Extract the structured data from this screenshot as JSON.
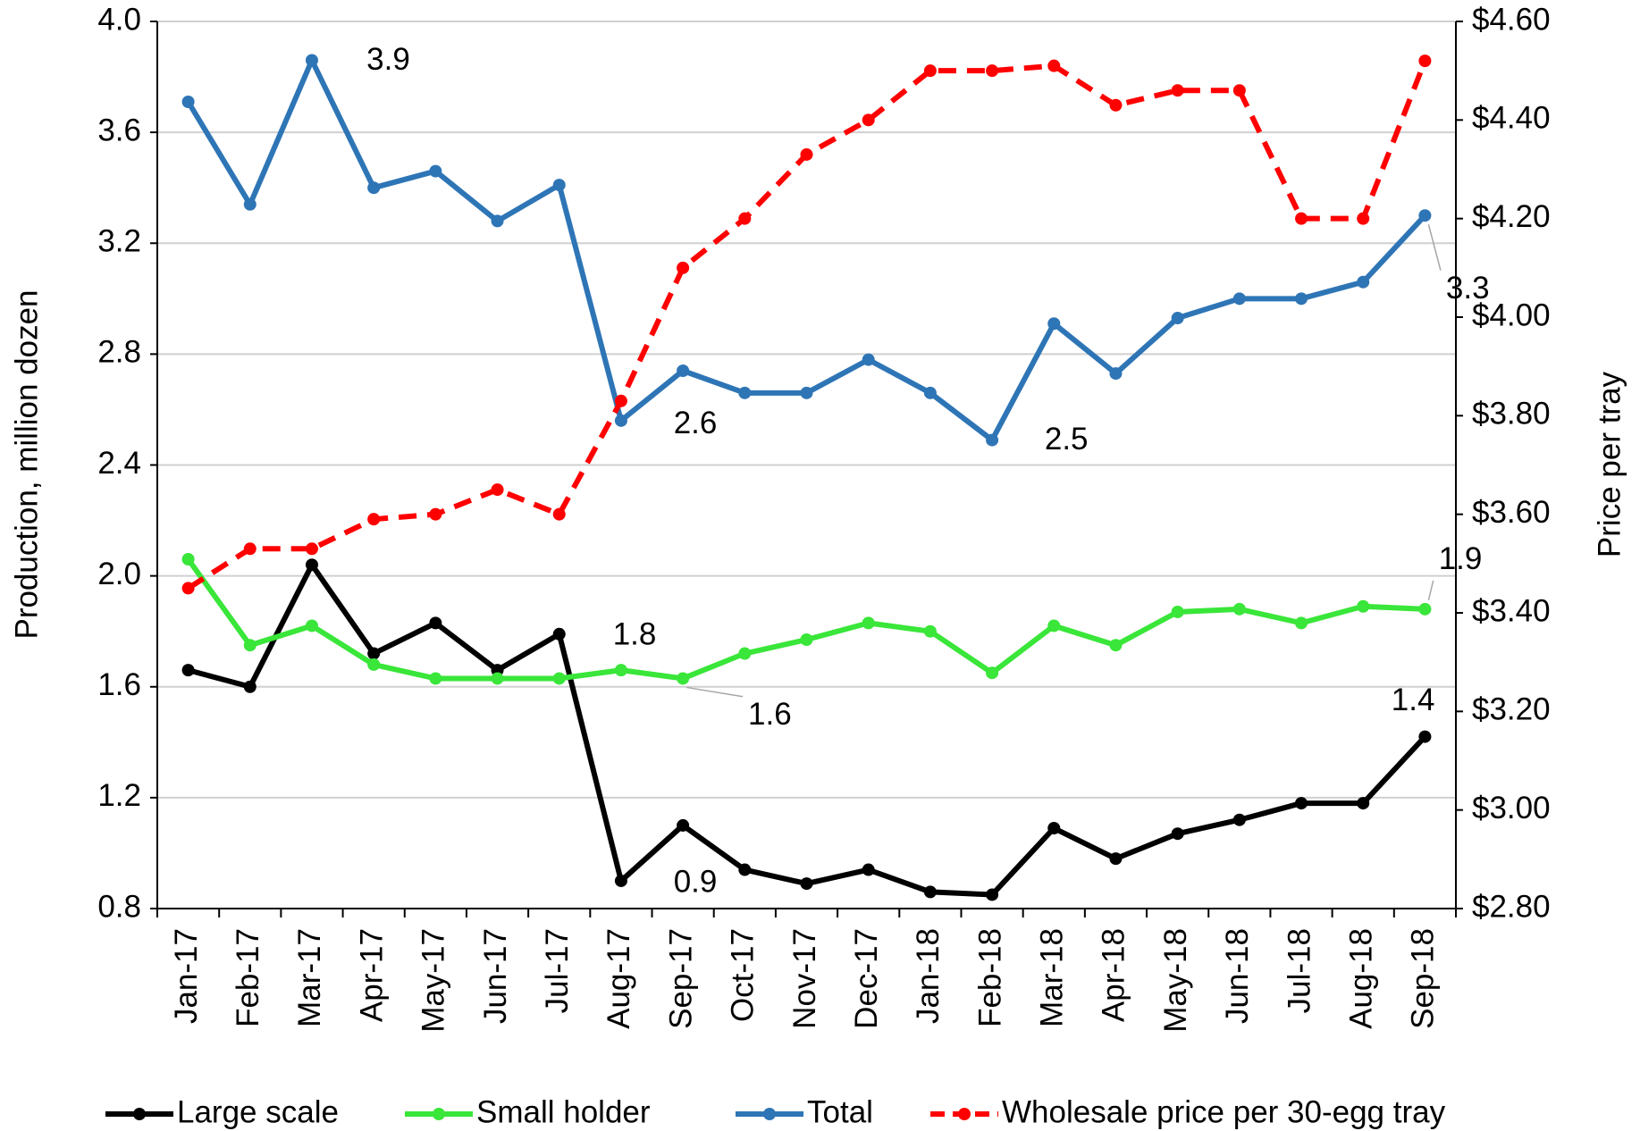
{
  "chart_data": {
    "type": "line",
    "categories": [
      "Jan-17",
      "Feb-17",
      "Mar-17",
      "Apr-17",
      "May-17",
      "Jun-17",
      "Jul-17",
      "Aug-17",
      "Sep-17",
      "Oct-17",
      "Nov-17",
      "Dec-17",
      "Jan-18",
      "Feb-18",
      "Mar-18",
      "Apr-18",
      "May-18",
      "Jun-18",
      "Jul-18",
      "Aug-18",
      "Sep-18"
    ],
    "y_label": "Production, million dozen",
    "y2_label": "Price per tray",
    "ylim": [
      0.8,
      4.0
    ],
    "yticks": [
      0.8,
      1.2,
      1.6,
      {
        "value": 2,
        "label": "2.0"
      },
      2.4,
      2.8,
      3.2,
      3.6,
      {
        "value": 4,
        "label": "4.0"
      }
    ],
    "y2lim": [
      2.8,
      4.6
    ],
    "y2ticks": [
      {
        "value": 2.8,
        "label": "$2.80"
      },
      {
        "value": 3,
        "label": "$3.00"
      },
      {
        "value": 3.2,
        "label": "$3.20"
      },
      {
        "value": 3.4,
        "label": "$3.40"
      },
      {
        "value": 3.6,
        "label": "$3.60"
      },
      {
        "value": 3.8,
        "label": "$3.80"
      },
      {
        "value": 4,
        "label": "$4.00"
      },
      {
        "value": 4.2,
        "label": "$4.20"
      },
      {
        "value": 4.4,
        "label": "$4.40"
      },
      {
        "value": 4.6,
        "label": "$4.60"
      }
    ],
    "grid": true,
    "legend": "bottom",
    "series": [
      {
        "name": "Large scale",
        "color": "#000000",
        "values": [
          1.66,
          1.6,
          2.04,
          1.72,
          1.83,
          1.66,
          1.79,
          0.9,
          1.1,
          0.94,
          0.89,
          0.94,
          0.86,
          0.85,
          1.09,
          0.98,
          1.07,
          1.12,
          1.18,
          1.18,
          1.42
        ],
        "value_labels": [
          null,
          null,
          null,
          null,
          null,
          null,
          "1.8",
          "0.9",
          null,
          null,
          null,
          null,
          null,
          null,
          null,
          null,
          null,
          null,
          null,
          null,
          "1.4"
        ]
      },
      {
        "name": "Small holder",
        "color": "#39e639",
        "values": [
          2.06,
          1.75,
          1.82,
          1.68,
          1.63,
          1.63,
          1.63,
          1.66,
          1.63,
          1.72,
          1.77,
          1.83,
          1.8,
          1.65,
          1.82,
          1.75,
          1.87,
          1.88,
          1.83,
          1.89,
          1.88
        ],
        "value_labels": [
          null,
          null,
          null,
          null,
          null,
          null,
          null,
          null,
          "1.6",
          null,
          null,
          null,
          null,
          null,
          null,
          null,
          null,
          null,
          null,
          null,
          "1.9"
        ]
      },
      {
        "name": "Total",
        "color": "#2e75b6",
        "values": [
          3.71,
          3.34,
          3.86,
          3.4,
          3.46,
          3.28,
          3.41,
          2.56,
          2.74,
          2.66,
          2.66,
          2.78,
          2.66,
          2.49,
          2.91,
          2.73,
          2.93,
          3.0,
          3.0,
          3.06,
          3.3
        ],
        "value_labels": [
          null,
          null,
          "3.9",
          null,
          null,
          null,
          null,
          "2.6",
          null,
          null,
          null,
          null,
          null,
          "2.5",
          null,
          null,
          null,
          null,
          null,
          null,
          "3.3"
        ]
      },
      {
        "name": "Wholesale price per 30-egg tray",
        "color": "#ff0000",
        "axis": "y2",
        "line_style": "dashed",
        "values": [
          3.45,
          3.53,
          3.53,
          3.59,
          3.6,
          3.65,
          3.6,
          3.83,
          4.1,
          4.2,
          4.33,
          4.4,
          4.5,
          4.5,
          4.51,
          4.43,
          4.46,
          4.46,
          4.2,
          4.2,
          4.52
        ]
      }
    ]
  }
}
